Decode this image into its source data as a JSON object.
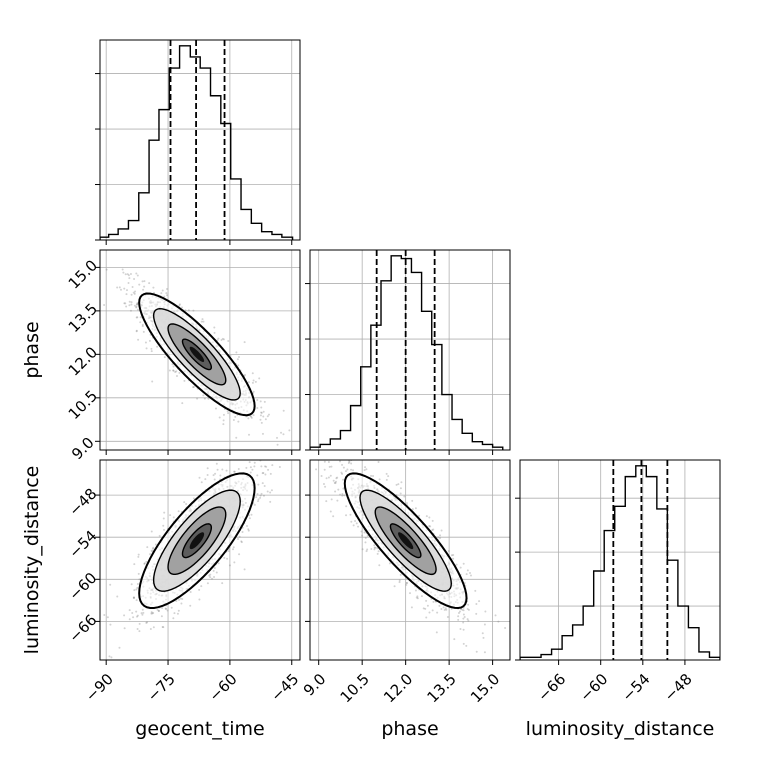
{
  "chart_data": {
    "type": "corner",
    "parameters": [
      "geocent_time",
      "phase",
      "luminosity_distance"
    ],
    "grid": true,
    "axes": {
      "geocent_time": {
        "label": "geocent_time",
        "range": [
          -91.5,
          -43.0
        ],
        "ticks": [
          -90,
          -75,
          -60,
          -45
        ],
        "tick_labels": [
          "−90",
          "−75",
          "−60",
          "−45"
        ]
      },
      "phase": {
        "label": "phase",
        "range": [
          8.7,
          15.6
        ],
        "ticks": [
          9.0,
          10.5,
          12.0,
          13.5,
          15.0
        ],
        "tick_labels": [
          "9.0",
          "10.5",
          "12.0",
          "13.5",
          "15.0"
        ]
      },
      "luminosity_distance": {
        "label": "luminosity_distance",
        "range": [
          -71.5,
          -43.0
        ],
        "ticks": [
          -66,
          -60,
          -54,
          -48
        ],
        "tick_labels": [
          "−66",
          "−60",
          "−54",
          "−48"
        ]
      }
    },
    "histograms": {
      "geocent_time": {
        "bin_edges": [
          -91.5,
          -89.4,
          -87.1,
          -84.6,
          -82.1,
          -79.6,
          -77.2,
          -74.7,
          -72.2,
          -69.6,
          -67.2,
          -64.7,
          -62.2,
          -59.8,
          -57.3,
          -54.8,
          -52.3,
          -49.8,
          -47.4,
          -44.8
        ],
        "counts": [
          1,
          2,
          4,
          7,
          17,
          36,
          47,
          62,
          70,
          66,
          62,
          52,
          42,
          22,
          11,
          6,
          3,
          2,
          1
        ],
        "quantiles": [
          -74.4,
          -68.2,
          -61.3
        ],
        "yticks": [
          0,
          20,
          40,
          60
        ]
      },
      "phase": {
        "bin_edges": [
          8.7,
          9.05,
          9.4,
          9.75,
          10.1,
          10.45,
          10.8,
          11.15,
          11.5,
          11.85,
          12.2,
          12.55,
          12.9,
          13.25,
          13.6,
          13.95,
          14.3,
          14.65,
          15.0,
          15.35
        ],
        "counts": [
          1,
          2,
          4,
          7,
          16,
          30,
          45,
          61,
          70,
          69,
          64,
          50,
          38,
          20,
          11,
          6,
          3,
          2,
          1
        ],
        "quantiles": [
          11.0,
          12.0,
          13.0
        ],
        "yticks": [
          0,
          20,
          40,
          60
        ]
      },
      "luminosity_distance": {
        "bin_edges": [
          -71.5,
          -70.0,
          -68.5,
          -67.0,
          -65.5,
          -64.0,
          -62.5,
          -61.0,
          -59.5,
          -58.0,
          -56.5,
          -55.0,
          -53.5,
          -52.0,
          -50.5,
          -49.0,
          -47.5,
          -46.0,
          -44.5,
          -43.0
        ],
        "counts": [
          1,
          1,
          2,
          4,
          9,
          13,
          20,
          33,
          48,
          57,
          68,
          72,
          68,
          56,
          37,
          20,
          12,
          3,
          1
        ],
        "quantiles": [
          -58.2,
          -54.2,
          -50.5
        ],
        "yticks": [
          0,
          20,
          40,
          60
        ]
      }
    },
    "pairs": [
      {
        "x": "geocent_time",
        "y": "phase",
        "mean": [
          -68.0,
          12.0
        ],
        "std": [
          7.0,
          1.05
        ],
        "correlation": -0.85,
        "contour_levels_sigma": [
          0.5,
          1.0,
          1.5,
          2.0
        ]
      },
      {
        "x": "geocent_time",
        "y": "luminosity_distance",
        "mean": [
          -68.0,
          -54.5
        ],
        "std": [
          7.0,
          4.8
        ],
        "correlation": 0.78,
        "contour_levels_sigma": [
          0.5,
          1.0,
          1.5,
          2.0
        ]
      },
      {
        "x": "phase",
        "y": "luminosity_distance",
        "mean": [
          12.0,
          -54.5
        ],
        "std": [
          1.05,
          4.8
        ],
        "correlation": -0.85,
        "contour_levels_sigma": [
          0.5,
          1.0,
          1.5,
          2.0
        ]
      }
    ],
    "colors": {
      "line": "#000000",
      "grid": "#b0b0b0",
      "samples": "#808080"
    }
  }
}
